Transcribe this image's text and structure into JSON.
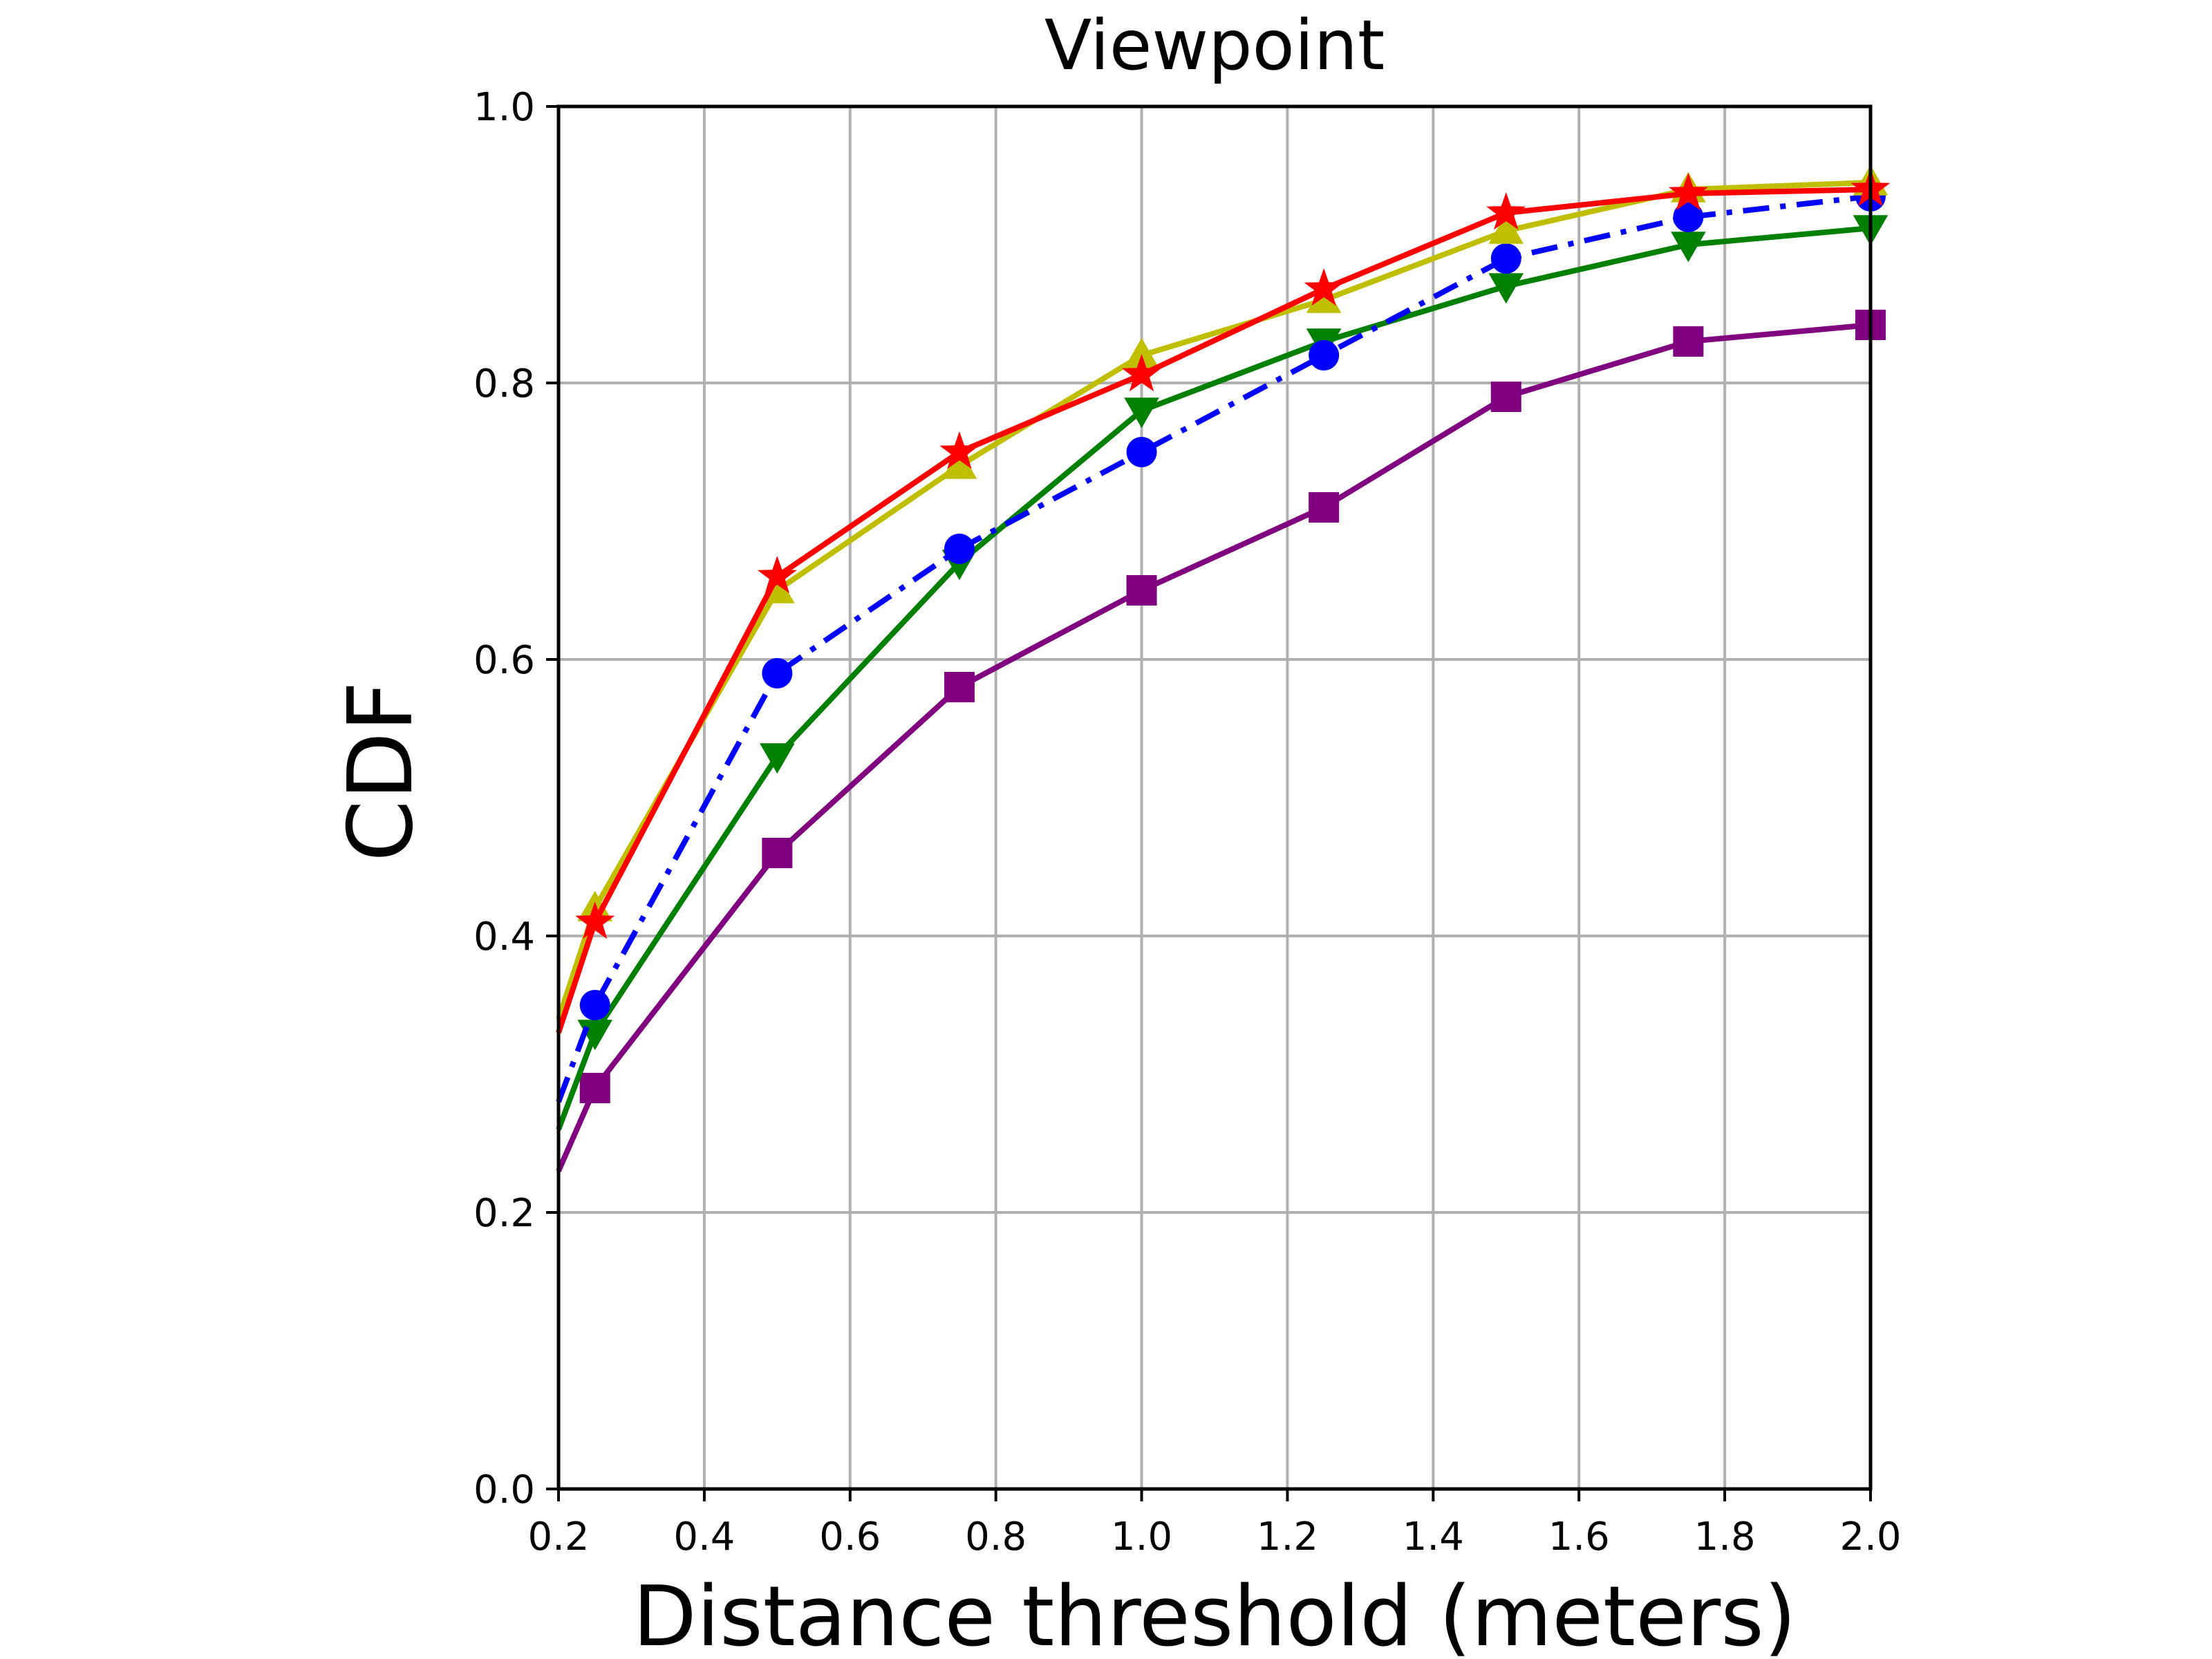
{
  "chart_data": {
    "type": "line",
    "title": "Viewpoint",
    "xlabel": "Distance threshold (meters)",
    "ylabel": "CDF",
    "xlim": [
      0.2,
      2.0
    ],
    "ylim": [
      0.0,
      1.0
    ],
    "xticks": [
      "0.2",
      "0.4",
      "0.6",
      "0.8",
      "1.0",
      "1.2",
      "1.4",
      "1.6",
      "1.8",
      "2.0"
    ],
    "yticks": [
      "0.0",
      "0.2",
      "0.4",
      "0.6",
      "0.8",
      "1.0"
    ],
    "grid": true,
    "series": [
      {
        "color": "#800080",
        "marker": "square",
        "linestyle": "solid",
        "x": [
          0.2,
          0.25,
          0.5,
          0.75,
          1.0,
          1.25,
          1.5,
          1.75,
          2.0
        ],
        "values": [
          0.23,
          0.29,
          0.46,
          0.58,
          0.65,
          0.71,
          0.79,
          0.83,
          0.842
        ]
      },
      {
        "color": "#008000",
        "marker": "triangle-down",
        "linestyle": "solid",
        "x": [
          0.2,
          0.25,
          0.5,
          0.75,
          1.0,
          1.25,
          1.5,
          1.75,
          2.0
        ],
        "values": [
          0.26,
          0.33,
          0.53,
          0.67,
          0.78,
          0.83,
          0.87,
          0.9,
          0.912
        ]
      },
      {
        "color": "#0000ff",
        "marker": "circle",
        "linestyle": "dashdot",
        "x": [
          0.2,
          0.25,
          0.5,
          0.75,
          1.0,
          1.25,
          1.5,
          1.75,
          2.0
        ],
        "values": [
          0.28,
          0.35,
          0.59,
          0.68,
          0.75,
          0.82,
          0.89,
          0.92,
          0.935
        ]
      },
      {
        "color": "#bfbf00",
        "marker": "triangle-up",
        "linestyle": "solid",
        "x": [
          0.2,
          0.25,
          0.5,
          0.75,
          1.0,
          1.25,
          1.5,
          1.75,
          2.0
        ],
        "values": [
          0.34,
          0.42,
          0.65,
          0.74,
          0.82,
          0.86,
          0.91,
          0.94,
          0.945
        ]
      },
      {
        "color": "#ff0000",
        "marker": "star",
        "linestyle": "solid",
        "x": [
          0.2,
          0.25,
          0.5,
          0.75,
          1.0,
          1.25,
          1.5,
          1.75,
          2.0
        ],
        "values": [
          0.33,
          0.41,
          0.66,
          0.75,
          0.806,
          0.868,
          0.923,
          0.937,
          0.94
        ]
      }
    ]
  }
}
